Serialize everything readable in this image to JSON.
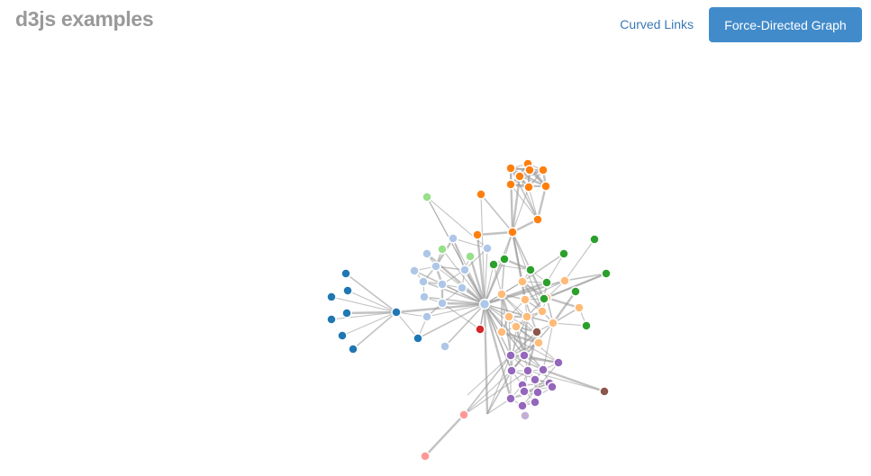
{
  "header": {
    "brand": "d3js examples",
    "nav_link": "Curved Links",
    "nav_button": "Force-Directed Graph"
  },
  "graph": {
    "palette": [
      "#1f77b4",
      "#aec7e8",
      "#ff7f0e",
      "#ffbb78",
      "#2ca02c",
      "#98df8a",
      "#d62728",
      "#ff9896",
      "#9467bd",
      "#c5b0d5",
      "#8c564b"
    ],
    "hub_group": 1,
    "nodes": [
      {
        "group": 0
      },
      {
        "group": 0
      },
      {
        "group": 0
      },
      {
        "group": 0
      },
      {
        "group": 0
      },
      {
        "group": 0
      },
      {
        "group": 0
      },
      {
        "group": 0
      },
      {
        "group": 0
      },
      {
        "group": 1
      },
      {
        "group": 1
      },
      {
        "group": 1
      },
      {
        "group": 1
      },
      {
        "group": 1
      },
      {
        "group": 1
      },
      {
        "group": 1
      },
      {
        "group": 1
      },
      {
        "group": 1
      },
      {
        "group": 1
      },
      {
        "group": 1
      },
      {
        "group": 1
      },
      {
        "group": 1
      },
      {
        "group": 1
      },
      {
        "group": 2
      },
      {
        "group": 2
      },
      {
        "group": 2
      },
      {
        "group": 2
      },
      {
        "group": 2
      },
      {
        "group": 2
      },
      {
        "group": 2
      },
      {
        "group": 2
      },
      {
        "group": 2
      },
      {
        "group": 2
      },
      {
        "group": 2
      },
      {
        "group": 2
      },
      {
        "group": 3
      },
      {
        "group": 3
      },
      {
        "group": 3
      },
      {
        "group": 3
      },
      {
        "group": 3
      },
      {
        "group": 3
      },
      {
        "group": 3
      },
      {
        "group": 3
      },
      {
        "group": 3
      },
      {
        "group": 3
      },
      {
        "group": 3
      },
      {
        "group": 3
      },
      {
        "group": 3
      },
      {
        "group": 4
      },
      {
        "group": 4
      },
      {
        "group": 4
      },
      {
        "group": 4
      },
      {
        "group": 4
      },
      {
        "group": 4
      },
      {
        "group": 4
      },
      {
        "group": 4
      },
      {
        "group": 4
      },
      {
        "group": 4
      },
      {
        "group": 5
      },
      {
        "group": 5
      },
      {
        "group": 5
      },
      {
        "group": 6
      },
      {
        "group": 7
      },
      {
        "group": 7
      },
      {
        "group": 8
      },
      {
        "group": 8
      },
      {
        "group": 8
      },
      {
        "group": 8
      },
      {
        "group": 8
      },
      {
        "group": 8
      },
      {
        "group": 8
      },
      {
        "group": 8
      },
      {
        "group": 8
      },
      {
        "group": 8
      },
      {
        "group": 8
      },
      {
        "group": 8
      },
      {
        "group": 8
      },
      {
        "group": 8
      },
      {
        "group": 8
      },
      {
        "group": 9
      },
      {
        "group": 10
      },
      {
        "group": 10
      }
    ]
  }
}
